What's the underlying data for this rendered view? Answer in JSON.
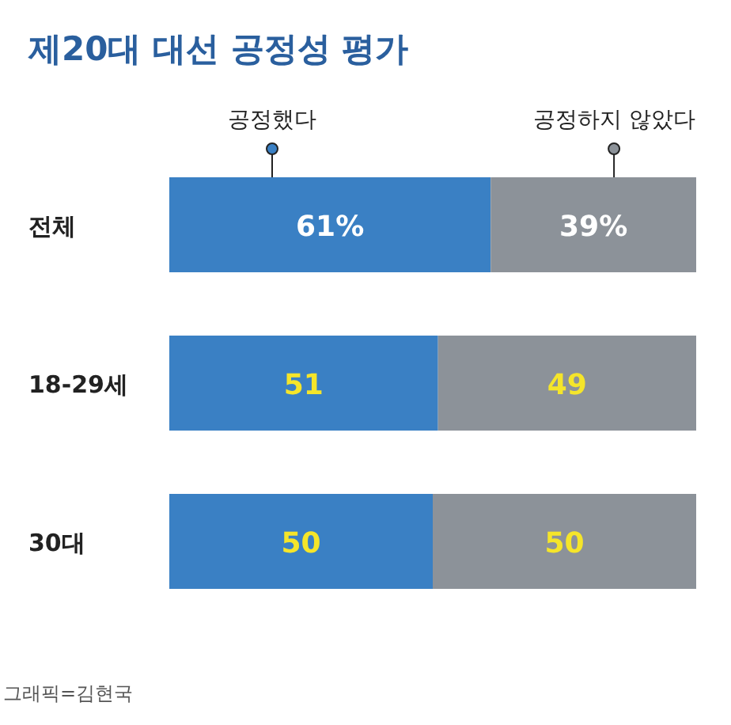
{
  "chart_data": {
    "type": "bar",
    "orientation": "horizontal",
    "stacked": true,
    "title": "제20대 대선 공정성 평가",
    "categories": [
      "전체",
      "18-29세",
      "30대"
    ],
    "series": [
      {
        "name": "공정했다",
        "color": "#3a80c4",
        "values": [
          61,
          51,
          50
        ],
        "value_labels": [
          "61%",
          "51",
          "50"
        ]
      },
      {
        "name": "공정하지 않았다",
        "color": "#8c9299",
        "values": [
          39,
          49,
          50
        ],
        "value_labels": [
          "39%",
          "49",
          "50"
        ]
      }
    ],
    "legend": "top",
    "annotations": [
      "그래픽=김현국"
    ]
  }
}
